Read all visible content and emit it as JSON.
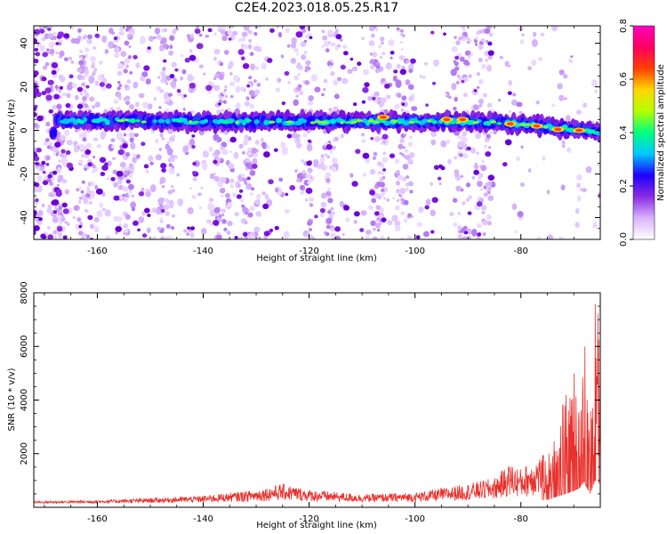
{
  "title": "C2E4.2023.018.05.25.R17",
  "chart_data": [
    {
      "type": "heatmap",
      "xlabel": "Height of straight line (km)",
      "ylabel": "Frequency (Hz)",
      "xlim": [
        -172,
        -65
      ],
      "ylim": [
        -50,
        48
      ],
      "xticks": [
        -160,
        -140,
        -120,
        -100,
        -80
      ],
      "yticks": [
        -40,
        -20,
        0,
        20,
        40
      ],
      "colorbar": {
        "label": "Normalized spectral amplitude",
        "range": [
          0.0,
          0.8
        ],
        "ticks": [
          "0.0",
          "0.2",
          "0.4",
          "0.6",
          "0.8"
        ],
        "colors": [
          "#ffffff",
          "#d9b3ff",
          "#8a2be2",
          "#1f00ff",
          "#00c8ff",
          "#00ff80",
          "#b4ff00",
          "#ffd700",
          "#ff4000",
          "#ff0060",
          "#ff00c0"
        ]
      },
      "band": {
        "centerline": [
          [
            -168,
            4.5
          ],
          [
            -160,
            4.5
          ],
          [
            -140,
            4.0
          ],
          [
            -120,
            4.0
          ],
          [
            -100,
            4.0
          ],
          [
            -90,
            4.0
          ],
          [
            -80,
            3.0
          ],
          [
            -72,
            1.0
          ],
          [
            -65,
            -1.0
          ]
        ],
        "peaks": [
          [
            -106,
            6
          ],
          [
            -94,
            5
          ],
          [
            -91,
            5
          ],
          [
            -82,
            3
          ],
          [
            -77,
            2
          ],
          [
            -73,
            0.5
          ],
          [
            -69,
            0
          ]
        ],
        "scatter_columns": [
          -168,
          -162,
          -155,
          -147,
          -136,
          -131,
          -121,
          -116,
          -107,
          -102,
          -91,
          -87
        ]
      }
    },
    {
      "type": "line",
      "xlabel": "Height of straight line (km)",
      "ylabel": "SNR (10 * v/v)",
      "xlim": [
        -172,
        -65
      ],
      "ylim": [
        0,
        8000
      ],
      "xticks": [
        -160,
        -140,
        -120,
        -100,
        -80
      ],
      "yticks": [
        2000,
        4000,
        6000,
        8000
      ],
      "color": "#e8302c",
      "envelope": [
        [
          -172,
          220
        ],
        [
          -160,
          250
        ],
        [
          -150,
          320
        ],
        [
          -140,
          400
        ],
        [
          -130,
          600
        ],
        [
          -125,
          800
        ],
        [
          -120,
          600
        ],
        [
          -110,
          450
        ],
        [
          -100,
          500
        ],
        [
          -95,
          650
        ],
        [
          -90,
          800
        ],
        [
          -85,
          1000
        ],
        [
          -82,
          1500
        ],
        [
          -80,
          1300
        ],
        [
          -77,
          1700
        ],
        [
          -75,
          1800
        ],
        [
          -73,
          3000
        ],
        [
          -71,
          4000
        ],
        [
          -70,
          4500
        ],
        [
          -69,
          5500
        ],
        [
          -68,
          7500
        ],
        [
          -67,
          3500
        ],
        [
          -66,
          7800
        ],
        [
          -65,
          6500
        ]
      ]
    }
  ]
}
